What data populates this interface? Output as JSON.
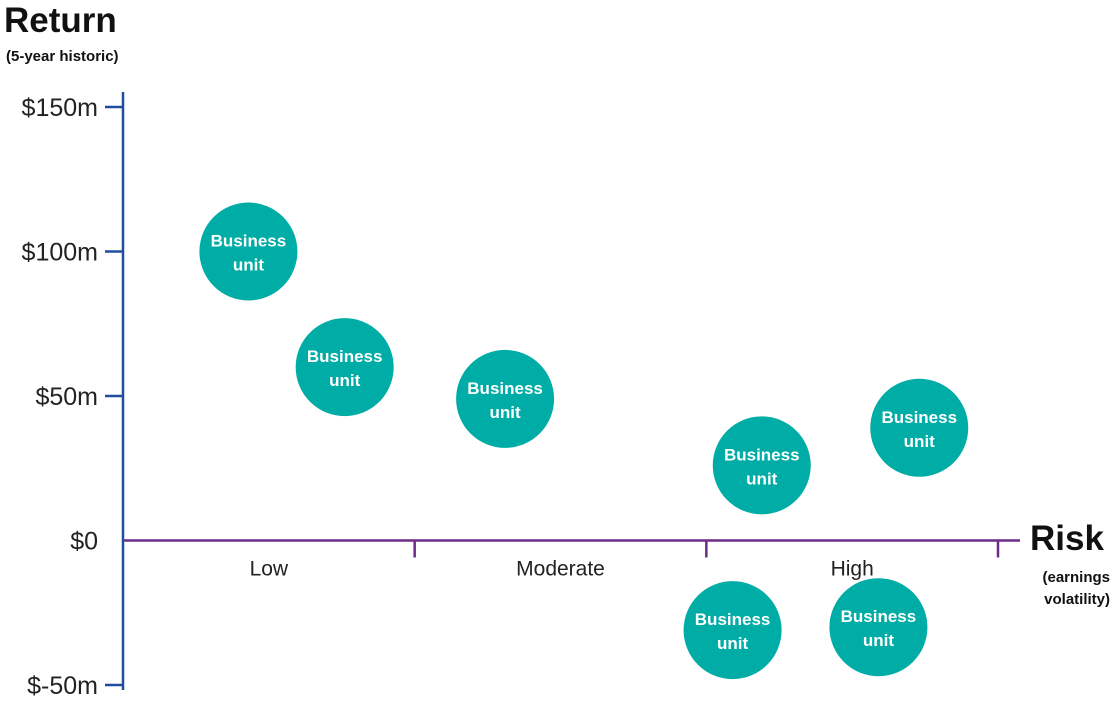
{
  "chart_data": {
    "type": "scatter",
    "title": "",
    "ylabel": "Return",
    "ylabel_sub": "(5-year historic)",
    "xlabel": "Risk",
    "xlabel_sub": [
      "(earnings",
      "volatility)"
    ],
    "y_ticks": [
      {
        "value": 150,
        "label": "$150m"
      },
      {
        "value": 100,
        "label": "$100m"
      },
      {
        "value": 50,
        "label": "$50m"
      },
      {
        "value": 0,
        "label": "$0"
      },
      {
        "value": -50,
        "label": "$-50m"
      }
    ],
    "ylim": [
      -50,
      150
    ],
    "x_categories": [
      "Low",
      "Moderate",
      "High"
    ],
    "xlim": [
      0,
      3
    ],
    "points": [
      {
        "x": 0.43,
        "y": 100,
        "label": [
          "Business",
          "unit"
        ]
      },
      {
        "x": 0.76,
        "y": 60,
        "label": [
          "Business",
          "unit"
        ]
      },
      {
        "x": 1.31,
        "y": 49,
        "label": [
          "Business",
          "unit"
        ]
      },
      {
        "x": 2.19,
        "y": 26,
        "label": [
          "Business",
          "unit"
        ]
      },
      {
        "x": 2.73,
        "y": 39,
        "label": [
          "Business",
          "unit"
        ]
      },
      {
        "x": 2.09,
        "y": -31,
        "label": [
          "Business",
          "unit"
        ]
      },
      {
        "x": 2.59,
        "y": -30,
        "label": [
          "Business",
          "unit"
        ]
      }
    ],
    "grid": false,
    "colors": {
      "bubble": "#00ada6",
      "y_axis": "#1f4e9c",
      "x_axis": "#6b2c8a",
      "bubble_text": "#ffffff"
    }
  }
}
